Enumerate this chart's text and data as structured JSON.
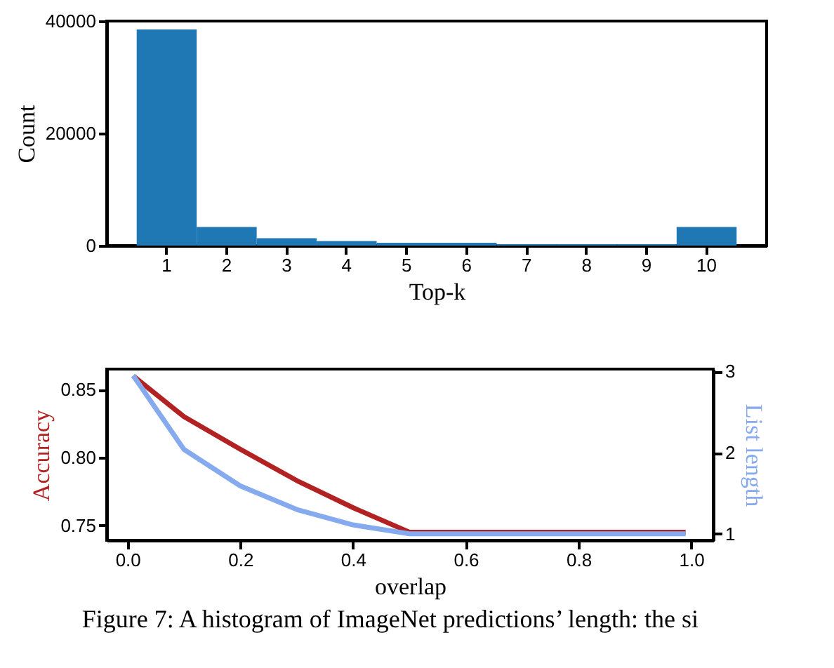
{
  "chart_data": [
    {
      "type": "bar",
      "categories": [
        "1",
        "2",
        "3",
        "4",
        "5",
        "6",
        "7",
        "8",
        "9",
        "10"
      ],
      "values": [
        38500,
        3300,
        1300,
        800,
        500,
        500,
        250,
        250,
        250,
        3300
      ],
      "color": "#1f77b4",
      "ylim": [
        0,
        40000
      ],
      "yticks": [
        0,
        20000,
        40000
      ],
      "xlabel": "Top-k",
      "ylabel": "Count"
    },
    {
      "type": "line",
      "xlabel": "overlap",
      "ylabel": "Accuracy",
      "y2label": "List length",
      "xlim": [
        -0.037,
        1.039
      ],
      "xticks": [
        {
          "value": 0,
          "label": "0.0"
        },
        0.2,
        0.4,
        0.6,
        0.8,
        {
          "value": 1,
          "label": "1.0"
        }
      ],
      "ylim": [
        0.739,
        0.865
      ],
      "yticks": [
        {
          "value": 0.75,
          "label": "0.75"
        },
        {
          "value": 0.8,
          "label": "0.80"
        },
        0.85
      ],
      "y2lim": [
        0.92,
        3.03
      ],
      "y2ticks": [
        1,
        2,
        3
      ],
      "series": [
        {
          "color": "#b22222",
          "x": [
            0.01,
            0.1,
            0.2,
            0.3,
            0.4,
            0.5,
            0.99
          ],
          "values": [
            0.86,
            0.83,
            0.806,
            0.783,
            0.763,
            0.745,
            0.745
          ]
        },
        {
          "color": "#86aaee",
          "axis": "y2",
          "x": [
            0.01,
            0.1,
            0.2,
            0.3,
            0.4,
            0.5,
            0.99
          ],
          "values": [
            2.95,
            2.04,
            1.59,
            1.3,
            1.11,
            1.0,
            1.0
          ]
        }
      ],
      "annotations": [
        "Figure 7: A histogram of ImageNet predictions’ length: the si"
      ]
    }
  ]
}
